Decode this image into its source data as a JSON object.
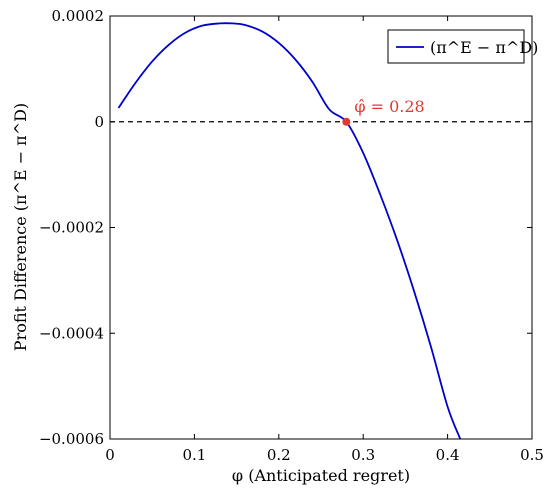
{
  "chart_data": {
    "type": "line",
    "xlabel": "φ (Anticipated regret)",
    "ylabel": "Profit Difference (π^E − π^D)",
    "xlim": [
      0,
      0.5
    ],
    "ylim": [
      -0.0006,
      0.0002
    ],
    "x_ticks": [
      0,
      0.1,
      0.2,
      0.3,
      0.4,
      0.5
    ],
    "x_tick_labels": [
      "0",
      "0.1",
      "0.2",
      "0.3",
      "0.4",
      "0.5"
    ],
    "y_ticks": [
      0.0002,
      0,
      -0.0002,
      -0.0004,
      -0.0006
    ],
    "y_tick_labels": [
      "0.0002",
      "0",
      "−0.0002",
      "−0.0004",
      "−0.0006"
    ],
    "grid": false,
    "legend_position": "top-right",
    "series": [
      {
        "name": "(π^E − π^D)",
        "color": "#0000cc",
        "x": [
          0.01,
          0.03,
          0.05,
          0.07,
          0.09,
          0.11,
          0.13,
          0.145,
          0.16,
          0.18,
          0.2,
          0.22,
          0.24,
          0.26,
          0.28,
          0.3,
          0.32,
          0.34,
          0.36,
          0.38,
          0.4,
          0.415
        ],
        "y": [
          2.6e-05,
          7.3e-05,
          0.000114,
          0.000146,
          0.000169,
          0.000182,
          0.000186,
          0.000186,
          0.000183,
          0.000171,
          0.000149,
          0.000117,
          7.5e-05,
          2.3e-05,
          0.0,
          -5.9e-05,
          -0.000137,
          -0.000223,
          -0.000319,
          -0.000424,
          -0.000539,
          -0.0006
        ]
      }
    ],
    "zero_line": {
      "y": 0,
      "style": "dashed",
      "color": "#000000"
    },
    "annotation": {
      "x": 0.28,
      "y": 0,
      "label": "φ̂ = 0.28",
      "color": "#e03a2f"
    }
  }
}
